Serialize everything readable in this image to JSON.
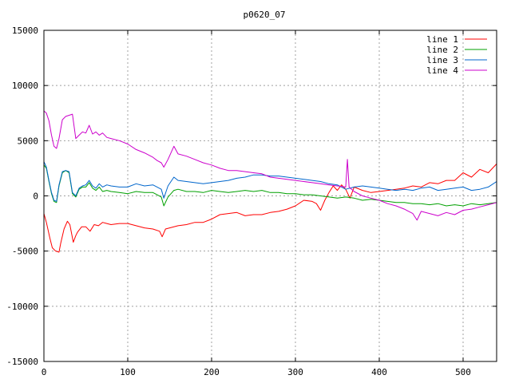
{
  "chart_data": {
    "type": "line",
    "title": "p0620_07",
    "xlabel": "",
    "ylabel": "",
    "xlim": [
      0,
      540
    ],
    "ylim": [
      -15000,
      15000
    ],
    "xticks": [
      0,
      100,
      200,
      300,
      400,
      500
    ],
    "yticks": [
      -15000,
      -10000,
      -5000,
      0,
      5000,
      10000,
      15000
    ],
    "xtick_labels": [
      "0",
      "100",
      "200",
      "300",
      "400",
      "500"
    ],
    "ytick_labels": [
      "-15000",
      "-10000",
      "-5000",
      "0",
      "5000",
      "10000",
      "15000"
    ],
    "grid": true,
    "legend_position": "top-right",
    "series": [
      {
        "name": "line 1",
        "color": "#ff0000",
        "x": [
          0,
          3,
          7,
          10,
          14,
          18,
          20,
          24,
          28,
          31,
          35,
          38,
          40,
          45,
          50,
          55,
          60,
          65,
          70,
          75,
          80,
          90,
          100,
          110,
          120,
          130,
          138,
          141,
          145,
          150,
          160,
          170,
          180,
          190,
          200,
          210,
          220,
          230,
          240,
          250,
          260,
          270,
          280,
          290,
          300,
          310,
          320,
          325,
          330,
          335,
          340,
          345,
          350,
          355,
          360,
          365,
          370,
          380,
          390,
          400,
          410,
          420,
          430,
          440,
          450,
          460,
          470,
          480,
          490,
          500,
          510,
          520,
          530,
          540
        ],
        "y": [
          -1600,
          -2400,
          -3800,
          -4700,
          -5000,
          -5100,
          -4300,
          -3000,
          -2300,
          -2600,
          -4200,
          -3600,
          -3300,
          -2800,
          -2800,
          -3200,
          -2600,
          -2700,
          -2400,
          -2500,
          -2600,
          -2500,
          -2500,
          -2700,
          -2900,
          -3000,
          -3200,
          -3700,
          -3000,
          -2900,
          -2700,
          -2600,
          -2400,
          -2400,
          -2100,
          -1700,
          -1600,
          -1500,
          -1800,
          -1700,
          -1700,
          -1500,
          -1400,
          -1200,
          -900,
          -400,
          -500,
          -700,
          -1300,
          -400,
          300,
          900,
          500,
          1000,
          600,
          -200,
          800,
          500,
          300,
          400,
          500,
          600,
          700,
          900,
          800,
          1200,
          1100,
          1400,
          1400,
          2100,
          1700,
          2400,
          2100,
          2900
        ]
      },
      {
        "name": "line 2",
        "color": "#00a000",
        "x": [
          0,
          3,
          6,
          9,
          12,
          15,
          18,
          22,
          26,
          30,
          34,
          38,
          42,
          46,
          50,
          54,
          58,
          62,
          66,
          70,
          75,
          80,
          90,
          100,
          110,
          120,
          130,
          135,
          140,
          143,
          148,
          155,
          160,
          170,
          180,
          190,
          200,
          210,
          220,
          230,
          240,
          250,
          260,
          270,
          280,
          290,
          300,
          310,
          320,
          330,
          340,
          350,
          360,
          370,
          380,
          390,
          400,
          410,
          420,
          430,
          440,
          450,
          460,
          470,
          480,
          490,
          500,
          510,
          520,
          530,
          540
        ],
        "y": [
          2800,
          2500,
          1300,
          200,
          -500,
          -600,
          900,
          2100,
          2300,
          2100,
          200,
          -100,
          600,
          800,
          800,
          1200,
          700,
          500,
          800,
          400,
          500,
          400,
          300,
          200,
          400,
          300,
          300,
          100,
          -100,
          -900,
          -100,
          500,
          600,
          400,
          400,
          300,
          500,
          400,
          300,
          400,
          500,
          400,
          500,
          300,
          300,
          200,
          200,
          100,
          100,
          0,
          -100,
          -200,
          -100,
          -200,
          -400,
          -300,
          -400,
          -500,
          -600,
          -600,
          -700,
          -700,
          -800,
          -700,
          -900,
          -800,
          -900,
          -700,
          -800,
          -700,
          -600
        ]
      },
      {
        "name": "line 3",
        "color": "#0066cc",
        "x": [
          0,
          3,
          6,
          9,
          12,
          15,
          18,
          22,
          26,
          30,
          34,
          38,
          42,
          46,
          50,
          54,
          58,
          62,
          66,
          70,
          75,
          80,
          90,
          100,
          110,
          120,
          130,
          135,
          140,
          143,
          148,
          155,
          160,
          170,
          180,
          190,
          200,
          210,
          220,
          230,
          240,
          250,
          260,
          270,
          280,
          290,
          300,
          310,
          320,
          330,
          340,
          350,
          360,
          370,
          380,
          390,
          400,
          410,
          420,
          430,
          440,
          450,
          460,
          470,
          480,
          490,
          500,
          510,
          520,
          530,
          540
        ],
        "y": [
          3100,
          2600,
          1400,
          300,
          -400,
          -500,
          1000,
          2200,
          2300,
          2200,
          300,
          0,
          700,
          900,
          1000,
          1400,
          900,
          700,
          1100,
          800,
          1000,
          900,
          800,
          800,
          1100,
          900,
          1000,
          800,
          600,
          -200,
          900,
          1700,
          1400,
          1300,
          1200,
          1100,
          1200,
          1300,
          1400,
          1600,
          1700,
          1900,
          1900,
          1800,
          1800,
          1700,
          1600,
          1500,
          1400,
          1300,
          1100,
          1000,
          600,
          800,
          900,
          800,
          700,
          600,
          500,
          600,
          500,
          700,
          800,
          500,
          600,
          700,
          800,
          500,
          600,
          800,
          1300
        ]
      },
      {
        "name": "line 4",
        "color": "#cc00cc",
        "x": [
          0,
          3,
          6,
          9,
          12,
          15,
          18,
          22,
          26,
          30,
          34,
          38,
          42,
          46,
          50,
          54,
          58,
          62,
          66,
          70,
          75,
          80,
          90,
          100,
          110,
          120,
          130,
          135,
          140,
          143,
          148,
          155,
          160,
          170,
          180,
          190,
          200,
          210,
          220,
          230,
          240,
          250,
          260,
          270,
          280,
          290,
          300,
          310,
          320,
          330,
          340,
          350,
          360,
          362,
          364,
          370,
          380,
          390,
          400,
          410,
          420,
          430,
          440,
          445,
          450,
          460,
          470,
          480,
          490,
          500,
          510,
          520,
          530,
          540
        ],
        "y": [
          7700,
          7500,
          6800,
          5500,
          4500,
          4300,
          5200,
          6900,
          7200,
          7300,
          7400,
          5200,
          5500,
          5800,
          5700,
          6400,
          5600,
          5800,
          5500,
          5700,
          5300,
          5200,
          5000,
          4700,
          4200,
          3900,
          3500,
          3200,
          3000,
          2600,
          3300,
          4500,
          3800,
          3600,
          3300,
          3000,
          2800,
          2500,
          2300,
          2300,
          2200,
          2100,
          2000,
          1700,
          1600,
          1500,
          1400,
          1300,
          1200,
          1100,
          1000,
          900,
          800,
          3300,
          800,
          400,
          0,
          -200,
          -400,
          -700,
          -900,
          -1200,
          -1600,
          -2200,
          -1400,
          -1600,
          -1800,
          -1500,
          -1700,
          -1300,
          -1200,
          -1000,
          -800,
          -600
        ]
      }
    ]
  }
}
